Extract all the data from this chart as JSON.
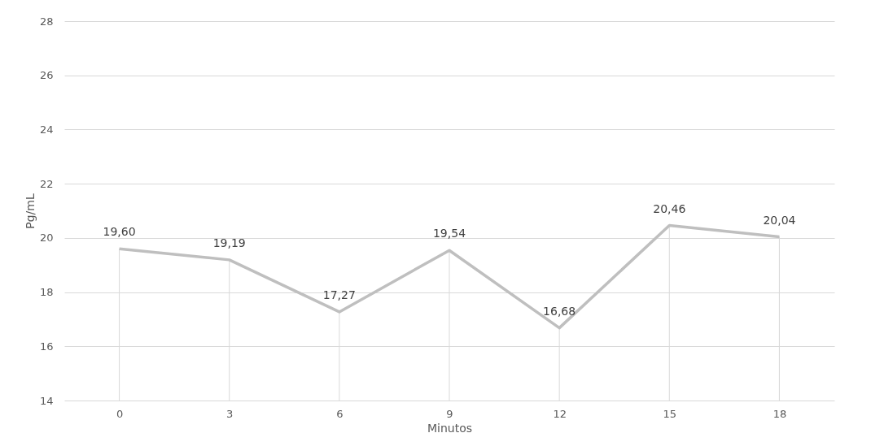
{
  "chart_data": {
    "type": "line",
    "xlabel": "Minutos",
    "ylabel": "Pg/mL",
    "categories": [
      "0",
      "3",
      "6",
      "9",
      "12",
      "15",
      "18"
    ],
    "series": [
      {
        "color": "#bfbfbf",
        "values": [
          19.6,
          19.19,
          17.27,
          19.54,
          16.68,
          20.46,
          20.04
        ],
        "value_labels": [
          "19,60",
          "19,19",
          "17,27",
          "19,54",
          "16,68",
          "20,46",
          "20,04"
        ]
      }
    ],
    "ylim": [
      14,
      28
    ],
    "yticks": [
      14,
      16,
      18,
      20,
      22,
      24,
      26,
      28
    ],
    "grid": "y",
    "marker": "none",
    "line_style": "solid"
  }
}
